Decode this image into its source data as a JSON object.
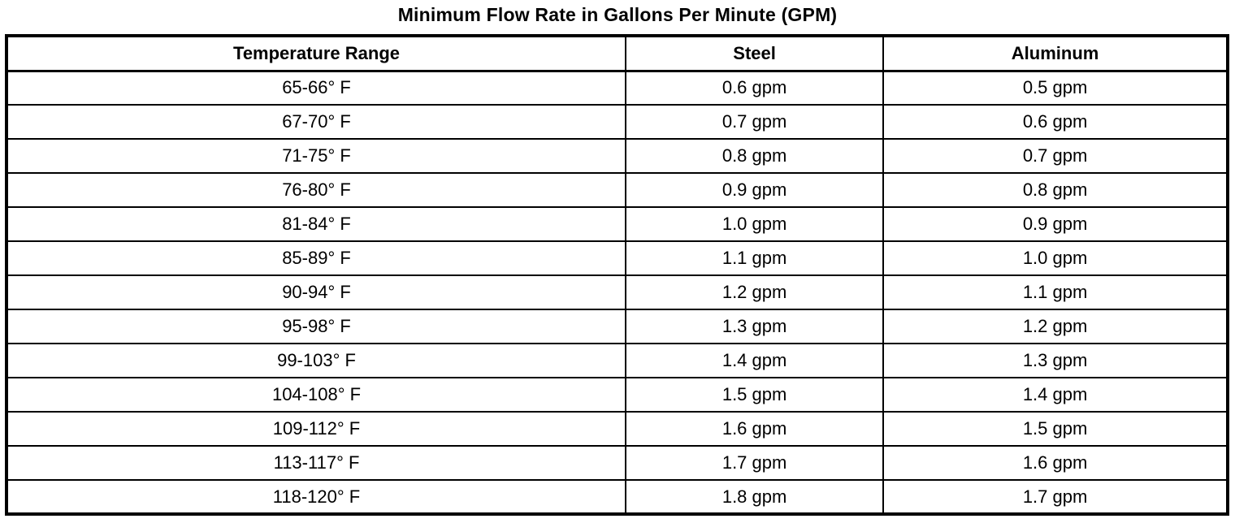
{
  "page": {
    "title": "Minimum Flow Rate in Gallons Per Minute (GPM)"
  },
  "colors": {
    "text": "#000000",
    "background": "#ffffff",
    "border": "#000000"
  },
  "table": {
    "headers": [
      "Temperature Range",
      "Steel",
      "Aluminum"
    ],
    "rows": [
      [
        "65-66° F",
        "0.6 gpm",
        "0.5 gpm"
      ],
      [
        "67-70° F",
        "0.7 gpm",
        "0.6 gpm"
      ],
      [
        "71-75° F",
        "0.8 gpm",
        "0.7 gpm"
      ],
      [
        "76-80° F",
        "0.9 gpm",
        "0.8 gpm"
      ],
      [
        "81-84° F",
        "1.0 gpm",
        "0.9 gpm"
      ],
      [
        "85-89° F",
        "1.1 gpm",
        "1.0 gpm"
      ],
      [
        "90-94° F",
        "1.2 gpm",
        "1.1 gpm"
      ],
      [
        "95-98° F",
        "1.3 gpm",
        "1.2 gpm"
      ],
      [
        "99-103° F",
        "1.4 gpm",
        "1.3 gpm"
      ],
      [
        "104-108° F",
        "1.5 gpm",
        "1.4 gpm"
      ],
      [
        "109-112° F",
        "1.6 gpm",
        "1.5 gpm"
      ],
      [
        "113-117° F",
        "1.7 gpm",
        "1.6 gpm"
      ],
      [
        "118-120° F",
        "1.8 gpm",
        "1.7 gpm"
      ]
    ]
  }
}
